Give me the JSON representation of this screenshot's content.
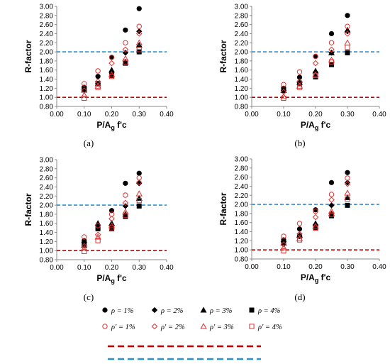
{
  "legend": {
    "items": [
      {
        "symbol": "filled-circle",
        "label": "ρ = 1%"
      },
      {
        "symbol": "filled-diamond",
        "label": "ρ = 2%"
      },
      {
        "symbol": "filled-triangle",
        "label": "ρ = 3%"
      },
      {
        "symbol": "filled-square",
        "label": "ρ = 4%"
      },
      {
        "symbol": "open-circle",
        "label": "ρ' = 1%"
      },
      {
        "symbol": "open-diamond",
        "label": "ρ' = 2%"
      },
      {
        "symbol": "open-triangle",
        "label": "ρ' = 3%"
      },
      {
        "symbol": "open-square",
        "label": "ρ' = 4%"
      }
    ],
    "lines": [
      {
        "style": "dashed",
        "color": "#c00000"
      },
      {
        "style": "dashed",
        "color": "#2e8fd0"
      }
    ]
  },
  "colors": {
    "filled": "#000000",
    "open": "#e03030",
    "red_line": "#c00000",
    "blue_line": "#2e8fd0"
  },
  "chart_data": [
    {
      "type": "scatter",
      "panel_label": "(a)",
      "xlabel": "P/A_g f'c",
      "ylabel": "R-factor",
      "xlim": [
        0.0,
        0.4
      ],
      "ylim": [
        0.8,
        3.0
      ],
      "x_ticks": [
        "0.00",
        "0.10",
        "0.20",
        "0.30",
        "0.40"
      ],
      "y_ticks": [
        "0.80",
        "1.00",
        "1.20",
        "1.40",
        "1.60",
        "1.80",
        "2.00",
        "2.20",
        "2.40",
        "2.60",
        "2.80",
        "3.00"
      ],
      "reference_lines": [
        {
          "y": 1.0,
          "color": "#c00000"
        },
        {
          "y": 2.0,
          "color": "#2e8fd0"
        }
      ],
      "series": [
        {
          "name": "ρ = 1%",
          "marker": "filled-circle",
          "x": [
            0.1,
            0.15,
            0.2,
            0.25,
            0.3
          ],
          "y": [
            1.22,
            1.46,
            1.88,
            2.48,
            2.95
          ]
        },
        {
          "name": "ρ = 2%",
          "marker": "filled-diamond",
          "x": [
            0.1,
            0.15,
            0.2,
            0.25,
            0.3
          ],
          "y": [
            1.18,
            1.3,
            1.55,
            1.98,
            2.45
          ]
        },
        {
          "name": "ρ = 3%",
          "marker": "filled-triangle",
          "x": [
            0.1,
            0.15,
            0.2,
            0.25,
            0.3
          ],
          "y": [
            1.16,
            1.3,
            1.6,
            1.78,
            2.15
          ]
        },
        {
          "name": "ρ = 4%",
          "marker": "filled-square",
          "x": [
            0.1,
            0.15,
            0.2,
            0.25,
            0.3
          ],
          "y": [
            1.2,
            1.3,
            1.48,
            1.75,
            2.0
          ]
        },
        {
          "name": "ρ' = 1%",
          "marker": "open-circle",
          "x": [
            0.1,
            0.15,
            0.2,
            0.25,
            0.3
          ],
          "y": [
            1.3,
            1.58,
            1.88,
            2.2,
            2.56
          ]
        },
        {
          "name": "ρ' = 2%",
          "marker": "open-diamond",
          "x": [
            0.1,
            0.15,
            0.2,
            0.25,
            0.3
          ],
          "y": [
            1.15,
            1.35,
            1.75,
            2.05,
            2.4
          ]
        },
        {
          "name": "ρ' = 3%",
          "marker": "open-triangle",
          "x": [
            0.1,
            0.15,
            0.2,
            0.25,
            0.3
          ],
          "y": [
            1.05,
            1.25,
            1.5,
            1.85,
            2.2
          ]
        },
        {
          "name": "ρ' = 4%",
          "marker": "open-square",
          "x": [
            0.1,
            0.15,
            0.2,
            0.25,
            0.3
          ],
          "y": [
            0.98,
            1.22,
            1.46,
            1.78,
            2.05
          ]
        }
      ]
    },
    {
      "type": "scatter",
      "panel_label": "(b)",
      "xlabel": "P/A_g f'c",
      "ylabel": "R-factor",
      "xlim": [
        0.0,
        0.4
      ],
      "ylim": [
        0.8,
        3.0
      ],
      "x_ticks": [
        "0.00",
        "0.10",
        "0.20",
        "0.30",
        "0.40"
      ],
      "y_ticks": [
        "0.80",
        "1.00",
        "1.20",
        "1.40",
        "1.60",
        "1.80",
        "2.00",
        "2.20",
        "2.40",
        "2.60",
        "2.80",
        "3.00"
      ],
      "reference_lines": [
        {
          "y": 1.0,
          "color": "#c00000"
        },
        {
          "y": 2.0,
          "color": "#2e8fd0"
        }
      ],
      "series": [
        {
          "name": "ρ = 1%",
          "marker": "filled-circle",
          "x": [
            0.1,
            0.15,
            0.2,
            0.25,
            0.3
          ],
          "y": [
            1.2,
            1.44,
            1.9,
            2.4,
            2.8
          ]
        },
        {
          "name": "ρ = 2%",
          "marker": "filled-diamond",
          "x": [
            0.1,
            0.15,
            0.2,
            0.25,
            0.3
          ],
          "y": [
            1.15,
            1.32,
            1.55,
            1.98,
            2.45
          ]
        },
        {
          "name": "ρ = 3%",
          "marker": "filled-triangle",
          "x": [
            0.1,
            0.15,
            0.2,
            0.25,
            0.3
          ],
          "y": [
            1.15,
            1.33,
            1.58,
            1.98,
            2.48
          ]
        },
        {
          "name": "ρ = 4%",
          "marker": "filled-square",
          "x": [
            0.1,
            0.15,
            0.2,
            0.25,
            0.3
          ],
          "y": [
            1.18,
            1.3,
            1.45,
            1.72,
            1.98
          ]
        },
        {
          "name": "ρ' = 1%",
          "marker": "open-circle",
          "x": [
            0.1,
            0.15,
            0.2,
            0.25,
            0.3
          ],
          "y": [
            1.28,
            1.56,
            1.9,
            2.2,
            2.56
          ]
        },
        {
          "name": "ρ' = 2%",
          "marker": "open-diamond",
          "x": [
            0.1,
            0.15,
            0.2,
            0.25,
            0.3
          ],
          "y": [
            1.12,
            1.35,
            1.75,
            2.05,
            2.4
          ]
        },
        {
          "name": "ρ' = 3%",
          "marker": "open-triangle",
          "x": [
            0.1,
            0.15,
            0.2,
            0.25,
            0.3
          ],
          "y": [
            1.02,
            1.25,
            1.5,
            1.82,
            2.2
          ]
        },
        {
          "name": "ρ' = 4%",
          "marker": "open-square",
          "x": [
            0.1,
            0.15,
            0.2,
            0.25,
            0.3
          ],
          "y": [
            0.98,
            1.22,
            1.48,
            1.78,
            2.1
          ]
        }
      ]
    },
    {
      "type": "scatter",
      "panel_label": "(c)",
      "xlabel": "P/A_g f'c",
      "ylabel": "R-factor",
      "xlim": [
        0.0,
        0.4
      ],
      "ylim": [
        0.8,
        3.0
      ],
      "x_ticks": [
        "0.00",
        "0.10",
        "0.20",
        "0.30",
        "0.40"
      ],
      "y_ticks": [
        "0.80",
        "1.00",
        "1.20",
        "1.40",
        "1.60",
        "1.80",
        "2.00",
        "2.20",
        "2.40",
        "2.60",
        "2.80",
        "3.00"
      ],
      "reference_lines": [
        {
          "y": 1.0,
          "color": "#c00000"
        },
        {
          "y": 2.0,
          "color": "#2e8fd0"
        }
      ],
      "series": [
        {
          "name": "ρ = 1%",
          "marker": "filled-circle",
          "x": [
            0.1,
            0.15,
            0.2,
            0.25,
            0.3
          ],
          "y": [
            1.22,
            1.48,
            1.88,
            2.48,
            2.7
          ]
        },
        {
          "name": "ρ = 2%",
          "marker": "filled-diamond",
          "x": [
            0.1,
            0.15,
            0.2,
            0.25,
            0.3
          ],
          "y": [
            1.18,
            1.55,
            1.55,
            1.98,
            2.48
          ]
        },
        {
          "name": "ρ = 3%",
          "marker": "filled-triangle",
          "x": [
            0.1,
            0.15,
            0.2,
            0.25,
            0.3
          ],
          "y": [
            1.12,
            1.6,
            1.6,
            1.8,
            2.15
          ]
        },
        {
          "name": "ρ = 4%",
          "marker": "filled-square",
          "x": [
            0.1,
            0.15,
            0.2,
            0.25,
            0.3
          ],
          "y": [
            1.15,
            1.48,
            1.48,
            1.75,
            1.98
          ]
        },
        {
          "name": "ρ' = 1%",
          "marker": "open-circle",
          "x": [
            0.1,
            0.15,
            0.2,
            0.25,
            0.3
          ],
          "y": [
            1.3,
            1.55,
            1.8,
            2.22,
            2.6
          ]
        },
        {
          "name": "ρ' = 2%",
          "marker": "open-diamond",
          "x": [
            0.1,
            0.15,
            0.2,
            0.25,
            0.3
          ],
          "y": [
            1.1,
            1.35,
            1.7,
            2.05,
            2.5
          ]
        },
        {
          "name": "ρ' = 3%",
          "marker": "open-triangle",
          "x": [
            0.1,
            0.15,
            0.2,
            0.25,
            0.3
          ],
          "y": [
            1.05,
            1.3,
            1.55,
            1.85,
            2.25
          ]
        },
        {
          "name": "ρ' = 4%",
          "marker": "open-square",
          "x": [
            0.1,
            0.15,
            0.2,
            0.25,
            0.3
          ],
          "y": [
            0.98,
            1.22,
            1.5,
            1.78,
            2.1
          ]
        }
      ]
    },
    {
      "type": "scatter",
      "panel_label": "(d)",
      "xlabel": "P/A_g f'c",
      "ylabel": "R-factor",
      "xlim": [
        0.0,
        0.4
      ],
      "ylim": [
        0.8,
        3.0
      ],
      "x_ticks": [
        "0.00",
        "0.10",
        "0.20",
        "0.30",
        "0.40"
      ],
      "y_ticks": [
        "0.80",
        "1.00",
        "1.20",
        "1.40",
        "1.60",
        "1.80",
        "2.00",
        "2.20",
        "2.40",
        "2.60",
        "2.80",
        "3.00"
      ],
      "reference_lines": [
        {
          "y": 1.0,
          "color": "#c00000"
        },
        {
          "y": 2.0,
          "color": "#2e8fd0"
        }
      ],
      "series": [
        {
          "name": "ρ = 1%",
          "marker": "filled-circle",
          "x": [
            0.1,
            0.15,
            0.2,
            0.25,
            0.3
          ],
          "y": [
            1.22,
            1.46,
            1.88,
            2.48,
            2.7
          ]
        },
        {
          "name": "ρ = 2%",
          "marker": "filled-diamond",
          "x": [
            0.1,
            0.15,
            0.2,
            0.25,
            0.3
          ],
          "y": [
            1.18,
            1.3,
            1.55,
            1.98,
            2.48
          ]
        },
        {
          "name": "ρ = 3%",
          "marker": "filled-triangle",
          "x": [
            0.1,
            0.15,
            0.2,
            0.25,
            0.3
          ],
          "y": [
            1.15,
            1.32,
            1.58,
            1.8,
            2.15
          ]
        },
        {
          "name": "ρ = 4%",
          "marker": "filled-square",
          "x": [
            0.1,
            0.15,
            0.2,
            0.25,
            0.3
          ],
          "y": [
            1.18,
            1.3,
            1.48,
            1.75,
            1.98
          ]
        },
        {
          "name": "ρ' = 1%",
          "marker": "open-circle",
          "x": [
            0.1,
            0.15,
            0.2,
            0.25,
            0.3
          ],
          "y": [
            1.3,
            1.58,
            1.85,
            2.22,
            2.58
          ]
        },
        {
          "name": "ρ' = 2%",
          "marker": "open-diamond",
          "x": [
            0.1,
            0.15,
            0.2,
            0.25,
            0.3
          ],
          "y": [
            1.12,
            1.35,
            1.72,
            2.1,
            2.45
          ]
        },
        {
          "name": "ρ' = 3%",
          "marker": "open-triangle",
          "x": [
            0.1,
            0.15,
            0.2,
            0.25,
            0.3
          ],
          "y": [
            1.05,
            1.25,
            1.52,
            1.85,
            2.25
          ]
        },
        {
          "name": "ρ' = 4%",
          "marker": "open-square",
          "x": [
            0.1,
            0.15,
            0.2,
            0.25,
            0.3
          ],
          "y": [
            0.98,
            1.22,
            1.48,
            1.78,
            2.12
          ]
        }
      ]
    }
  ]
}
